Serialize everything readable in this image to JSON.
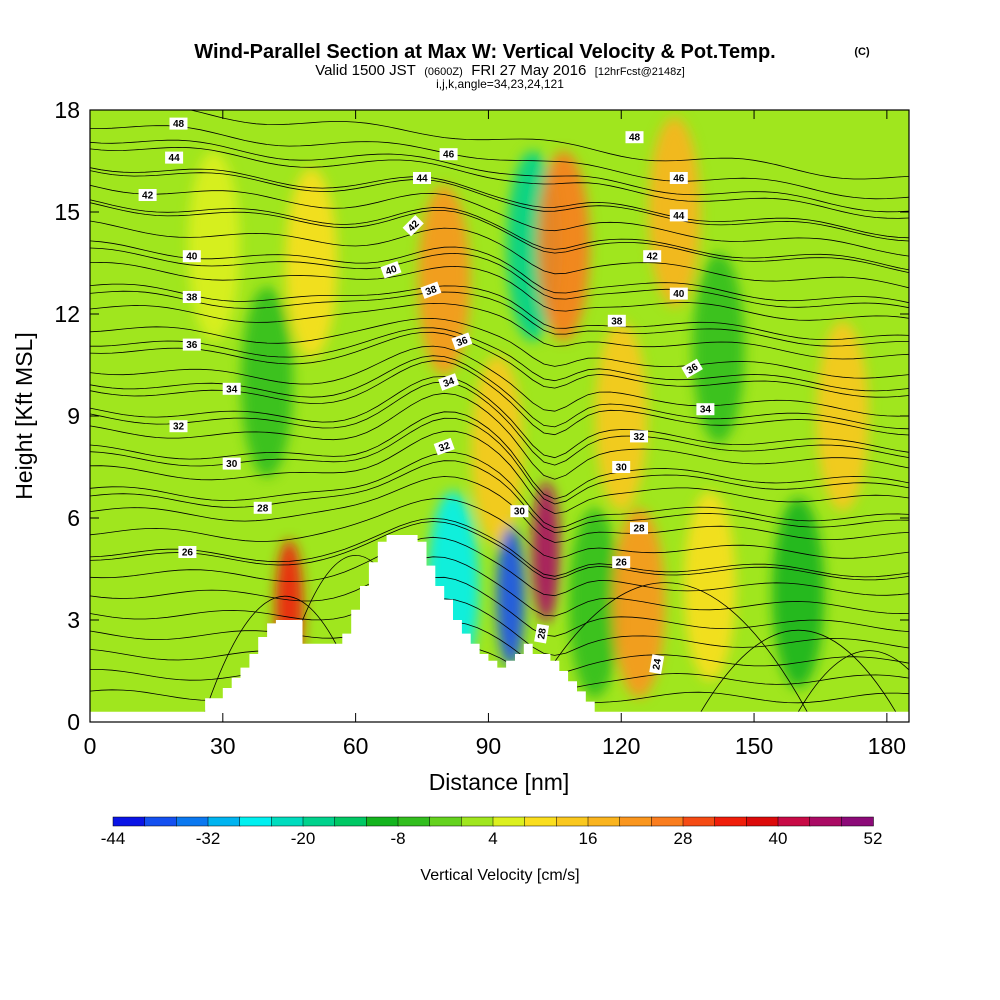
{
  "header": {
    "title": "Wind-Parallel Section at Max W: Vertical Velocity & Pot.Temp.",
    "title_suffix": "(C)",
    "valid_prefix": "Valid 1500 JST",
    "valid_utc": "(0600Z)",
    "valid_date": "FRI 27 May 2016",
    "forecast": "[12hrFcst@2148z]",
    "indices": "i,j,k,angle=34,23,24,121"
  },
  "chart_data": {
    "type": "heatmap",
    "title": "Wind-Parallel Section at Max W: Vertical Velocity & Pot.Temp.",
    "xlabel": "Distance [nm]",
    "ylabel": "Height [Kft MSL]",
    "xlim": [
      0,
      185
    ],
    "ylim": [
      0,
      18
    ],
    "xticks": [
      0,
      30,
      60,
      90,
      120,
      150,
      180
    ],
    "yticks": [
      0,
      3,
      6,
      9,
      12,
      15,
      18
    ],
    "colorbar": {
      "label": "Vertical Velocity [cm/s]",
      "tick_labels": [
        "-44",
        "-32",
        "-20",
        "-8",
        "4",
        "16",
        "28",
        "40",
        "52"
      ],
      "levels": [
        -44,
        -40,
        -36,
        -32,
        -28,
        -24,
        -20,
        -16,
        -12,
        -8,
        -4,
        0,
        4,
        8,
        12,
        16,
        20,
        24,
        28,
        32,
        36,
        40,
        44,
        48,
        52
      ],
      "colors": [
        "#0a14e6",
        "#1450f0",
        "#0a78f0",
        "#00b4f0",
        "#00f0f0",
        "#00dcbe",
        "#00d28c",
        "#00c864",
        "#14b41e",
        "#32be1e",
        "#64d21e",
        "#a0e61e",
        "#dcf01e",
        "#fade1e",
        "#fac81e",
        "#fab41e",
        "#fa961e",
        "#fa7d1e",
        "#f54b14",
        "#f01e0a",
        "#dc0a0a",
        "#c80a46",
        "#aa0a64",
        "#8c0a78",
        "#6e0a8c"
      ]
    },
    "features": [
      {
        "x": 45,
        "y": 3.3,
        "value": 34
      },
      {
        "x": 50,
        "y": 13.5,
        "value": 8
      },
      {
        "x": 80,
        "y": 13,
        "value": 22
      },
      {
        "x": 100,
        "y": 14,
        "value": -18
      },
      {
        "x": 107,
        "y": 14,
        "value": 24
      },
      {
        "x": 92,
        "y": 8,
        "value": 14
      },
      {
        "x": 103,
        "y": 5,
        "value": 44
      },
      {
        "x": 95,
        "y": 3.7,
        "value": -40
      },
      {
        "x": 82,
        "y": 4,
        "value": -26
      },
      {
        "x": 114,
        "y": 3.5,
        "value": -8
      },
      {
        "x": 124,
        "y": 3.5,
        "value": 20
      },
      {
        "x": 140,
        "y": 4,
        "value": 10
      },
      {
        "x": 160,
        "y": 3.8,
        "value": -10
      },
      {
        "x": 170,
        "y": 9,
        "value": 14
      },
      {
        "x": 132,
        "y": 15,
        "value": 16
      },
      {
        "x": 142,
        "y": 11,
        "value": -8
      },
      {
        "x": 40,
        "y": 10,
        "value": -6
      },
      {
        "x": 28,
        "y": 14,
        "value": 6
      },
      {
        "x": 120,
        "y": 9,
        "value": 12
      }
    ],
    "terrain_x": [
      0,
      26,
      26,
      30,
      30,
      32,
      32,
      34,
      34,
      36,
      36,
      38,
      38,
      40,
      40,
      42,
      42,
      48,
      48,
      52,
      52,
      57,
      57,
      59,
      59,
      61,
      61,
      63,
      63,
      65,
      65,
      67,
      67,
      69,
      69,
      74,
      74,
      76,
      76,
      78,
      78,
      80,
      80,
      82,
      82,
      84,
      84,
      86,
      86,
      88,
      88,
      90,
      90,
      92,
      92,
      94,
      94,
      96,
      96,
      98,
      98,
      100,
      100,
      104,
      104,
      106,
      106,
      108,
      108,
      110,
      110,
      112,
      112,
      114,
      114,
      120,
      120,
      185
    ],
    "terrain_y": [
      0.3,
      0.3,
      0.7,
      0.7,
      1.0,
      1.0,
      1.3,
      1.3,
      1.6,
      1.6,
      2.0,
      2.0,
      2.5,
      2.5,
      2.9,
      2.9,
      3.0,
      3.0,
      2.3,
      2.3,
      2.3,
      2.3,
      2.6,
      2.6,
      3.3,
      3.3,
      4.0,
      4.0,
      4.7,
      4.7,
      5.3,
      5.3,
      5.5,
      5.5,
      5.5,
      5.5,
      5.3,
      5.3,
      4.6,
      4.6,
      4.0,
      4.0,
      3.6,
      3.6,
      3.0,
      3.0,
      2.6,
      2.6,
      2.3,
      2.3,
      2.0,
      2.0,
      1.8,
      1.8,
      1.6,
      1.6,
      1.8,
      1.8,
      2.0,
      2.0,
      2.3,
      2.3,
      2.0,
      2.0,
      1.8,
      1.8,
      1.5,
      1.5,
      1.2,
      1.2,
      0.9,
      0.9,
      0.6,
      0.6,
      0.3,
      0.3,
      0.3,
      0.3
    ],
    "isentropes": [
      {
        "label": "24",
        "base": 0.8,
        "lx": 128,
        "ly": 1.7,
        "rot": -80
      },
      {
        "label": "26",
        "base": 4.9,
        "lx": 22,
        "ly": 5.0,
        "rot": 0
      },
      {
        "label": "26",
        "base": 4.9,
        "lx": 120,
        "ly": 4.7,
        "rot": 0
      },
      {
        "label": "28",
        "base": 6.6,
        "lx": 39,
        "ly": 6.3,
        "rot": 0
      },
      {
        "label": "28",
        "base": 6.6,
        "lx": 124,
        "ly": 5.7,
        "rot": 0
      },
      {
        "label": "28",
        "base": 6.6,
        "lx": 102,
        "ly": 2.6,
        "rot": -80
      },
      {
        "label": "30",
        "base": 7.8,
        "lx": 32,
        "ly": 7.6,
        "rot": 0
      },
      {
        "label": "30",
        "base": 7.8,
        "lx": 97,
        "ly": 6.2,
        "rot": 0
      },
      {
        "label": "30",
        "base": 7.8,
        "lx": 120,
        "ly": 7.5,
        "rot": 0
      },
      {
        "label": "32",
        "base": 9.0,
        "lx": 20,
        "ly": 8.7,
        "rot": 0
      },
      {
        "label": "32",
        "base": 9.0,
        "lx": 80,
        "ly": 8.1,
        "rot": -20
      },
      {
        "label": "32",
        "base": 9.0,
        "lx": 124,
        "ly": 8.4,
        "rot": 0
      },
      {
        "label": "34",
        "base": 10.0,
        "lx": 32,
        "ly": 9.8,
        "rot": 0
      },
      {
        "label": "34",
        "base": 10.0,
        "lx": 81,
        "ly": 10.0,
        "rot": -20
      },
      {
        "label": "34",
        "base": 10.0,
        "lx": 139,
        "ly": 9.2,
        "rot": 0
      },
      {
        "label": "36",
        "base": 11.2,
        "lx": 23,
        "ly": 11.1,
        "rot": 0
      },
      {
        "label": "36",
        "base": 11.2,
        "lx": 84,
        "ly": 11.2,
        "rot": -20
      },
      {
        "label": "36",
        "base": 11.2,
        "lx": 136,
        "ly": 10.4,
        "rot": -30
      },
      {
        "label": "38",
        "base": 12.6,
        "lx": 23,
        "ly": 12.5,
        "rot": 0
      },
      {
        "label": "38",
        "base": 12.6,
        "lx": 77,
        "ly": 12.7,
        "rot": -20
      },
      {
        "label": "38",
        "base": 12.6,
        "lx": 119,
        "ly": 11.8,
        "rot": 0
      },
      {
        "label": "40",
        "base": 13.8,
        "lx": 23,
        "ly": 13.7,
        "rot": 0
      },
      {
        "label": "40",
        "base": 13.8,
        "lx": 68,
        "ly": 13.3,
        "rot": -20
      },
      {
        "label": "40",
        "base": 13.8,
        "lx": 133,
        "ly": 12.6,
        "rot": 0
      },
      {
        "label": "42",
        "base": 15.3,
        "lx": 13,
        "ly": 15.5,
        "rot": 0
      },
      {
        "label": "42",
        "base": 15.3,
        "lx": 73,
        "ly": 14.6,
        "rot": -45
      },
      {
        "label": "42",
        "base": 15.3,
        "lx": 127,
        "ly": 13.7,
        "rot": 0
      },
      {
        "label": "44",
        "base": 16.3,
        "lx": 19,
        "ly": 16.6,
        "rot": 0
      },
      {
        "label": "44",
        "base": 16.3,
        "lx": 75,
        "ly": 16.0,
        "rot": 0
      },
      {
        "label": "44",
        "base": 16.3,
        "lx": 133,
        "ly": 14.9,
        "rot": 0
      },
      {
        "label": "46",
        "base": 17.2,
        "lx": 81,
        "ly": 16.7,
        "rot": 0
      },
      {
        "label": "46",
        "base": 17.2,
        "lx": 133,
        "ly": 16.0,
        "rot": 0
      },
      {
        "label": "48",
        "base": 18.2,
        "lx": 20,
        "ly": 17.6,
        "rot": 0
      },
      {
        "label": "48",
        "base": 18.2,
        "lx": 123,
        "ly": 17.2,
        "rot": 0
      }
    ]
  }
}
